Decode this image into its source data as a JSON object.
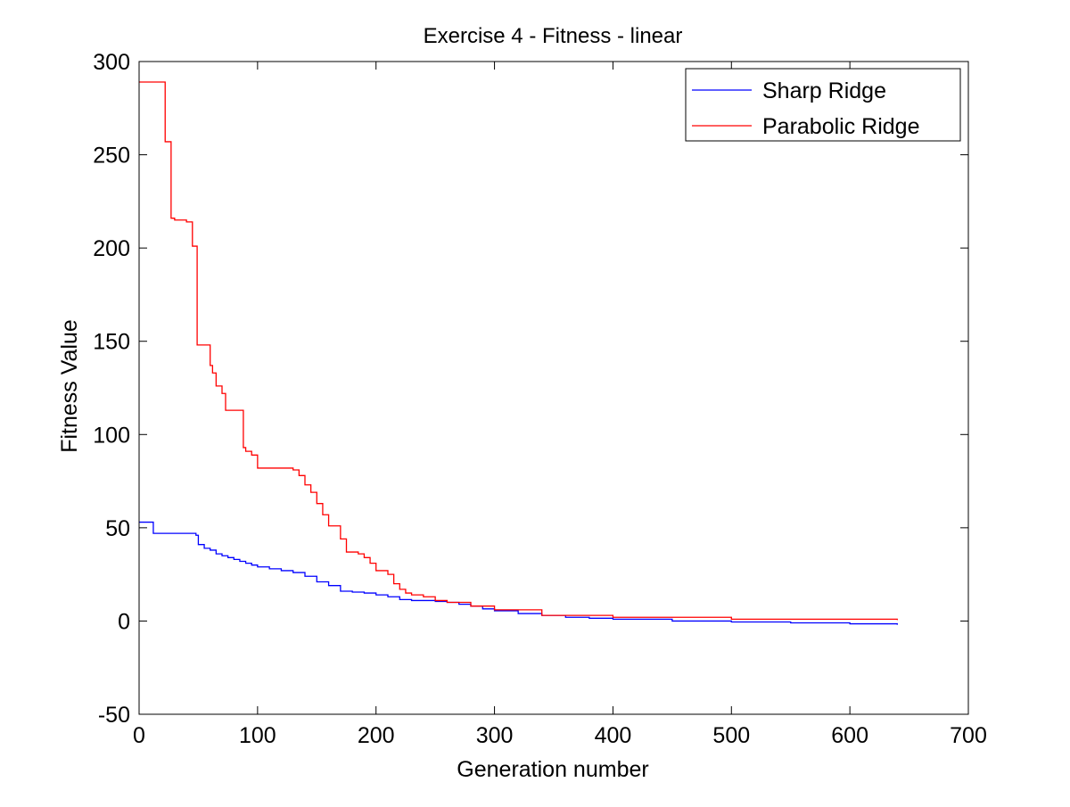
{
  "chart_data": {
    "type": "line",
    "title": "Exercise 4 - Fitness - linear",
    "xlabel": "Generation number",
    "ylabel": "Fitness Value",
    "xlim": [
      0,
      700
    ],
    "ylim": [
      -50,
      300
    ],
    "xticks": [
      0,
      100,
      200,
      300,
      400,
      500,
      600,
      700
    ],
    "yticks": [
      -50,
      0,
      50,
      100,
      150,
      200,
      250,
      300
    ],
    "grid": false,
    "legend_position": "top-right",
    "series": [
      {
        "name": "Sharp Ridge",
        "color": "#0000ff",
        "step": true,
        "x": [
          0,
          10,
          12,
          20,
          30,
          40,
          48,
          50,
          55,
          60,
          65,
          70,
          75,
          80,
          85,
          90,
          95,
          100,
          110,
          120,
          130,
          140,
          150,
          160,
          170,
          180,
          190,
          200,
          210,
          220,
          230,
          240,
          250,
          260,
          270,
          280,
          290,
          300,
          320,
          340,
          360,
          380,
          400,
          450,
          500,
          550,
          600,
          640
        ],
        "y": [
          53,
          53,
          47,
          47,
          47,
          47,
          46,
          41,
          39,
          38,
          36,
          35,
          34,
          33,
          32,
          31,
          30,
          29,
          28,
          27,
          26,
          24,
          21,
          19,
          16,
          15.5,
          15,
          14,
          13,
          11.5,
          11,
          11,
          10.5,
          10,
          9,
          8,
          6.5,
          5.5,
          4,
          3,
          2,
          1.5,
          1,
          0,
          -0.5,
          -1,
          -1.5,
          -2
        ]
      },
      {
        "name": "Parabolic Ridge",
        "color": "#ff0000",
        "step": true,
        "x": [
          0,
          20,
          22,
          27,
          30,
          40,
          45,
          49,
          52,
          60,
          62,
          65,
          70,
          73,
          77,
          80,
          88,
          90,
          95,
          100,
          105,
          120,
          130,
          135,
          140,
          145,
          150,
          155,
          160,
          165,
          170,
          175,
          185,
          190,
          195,
          200,
          210,
          215,
          220,
          225,
          230,
          240,
          250,
          260,
          280,
          300,
          340,
          400,
          500,
          640
        ],
        "y": [
          289,
          289,
          257,
          216,
          215,
          214,
          201,
          148,
          148,
          137,
          133,
          126,
          122,
          113,
          113,
          113,
          93,
          91,
          89,
          82,
          82,
          82,
          81,
          78,
          73,
          69,
          63,
          57,
          51,
          51,
          44,
          37,
          36,
          34,
          31,
          27,
          25,
          20,
          17,
          15,
          14,
          13,
          11,
          10,
          8,
          6,
          3,
          2,
          1,
          0.5
        ]
      }
    ]
  }
}
